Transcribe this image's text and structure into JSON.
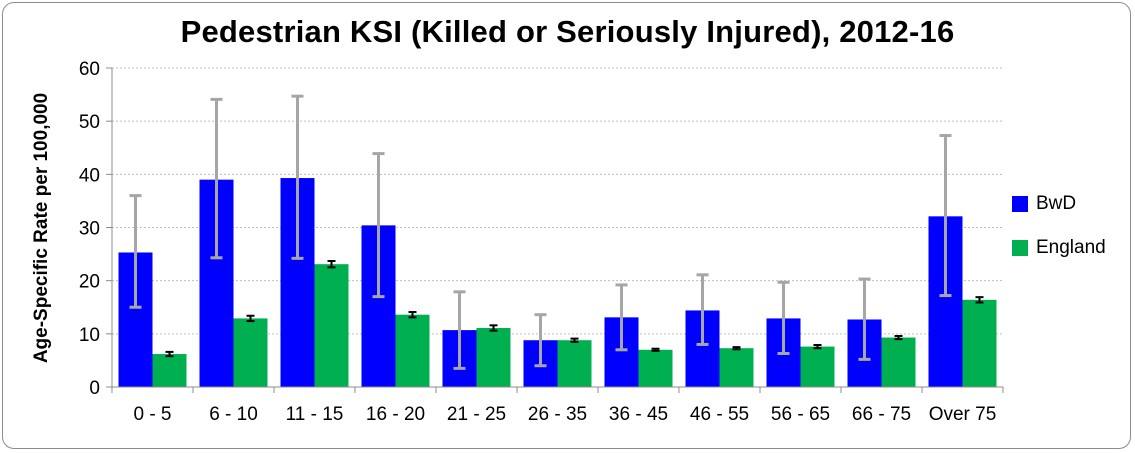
{
  "chart_data": {
    "type": "bar",
    "title": "Pedestrian KSI (Killed or Seriously Injured), 2012-16",
    "xlabel": "",
    "ylabel": "Age-Specific Rate per 100,000",
    "ylim": [
      0,
      60
    ],
    "yticks": [
      0,
      10,
      20,
      30,
      40,
      50,
      60
    ],
    "grid": true,
    "legend_position": "right",
    "categories": [
      "0 - 5",
      "6 - 10",
      "11 - 15",
      "16 - 20",
      "21 - 25",
      "26 - 35",
      "36 - 45",
      "46 - 55",
      "56 - 65",
      "66 - 75",
      "Over 75"
    ],
    "series": [
      {
        "name": "BwD",
        "color": "#0000ff",
        "values": [
          25.3,
          39.0,
          39.3,
          30.4,
          10.7,
          8.8,
          13.1,
          14.4,
          12.9,
          12.7,
          32.1
        ],
        "ci_low": [
          15.0,
          24.3,
          24.2,
          17.0,
          3.5,
          4.0,
          7.0,
          8.0,
          6.3,
          5.2,
          17.2
        ],
        "ci_high": [
          36.0,
          54.1,
          54.7,
          43.9,
          17.9,
          13.6,
          19.2,
          21.1,
          19.7,
          20.3,
          47.3
        ],
        "error_color": "#a6a6a6"
      },
      {
        "name": "England",
        "color": "#00b050",
        "values": [
          6.2,
          12.9,
          23.1,
          13.6,
          11.1,
          8.8,
          7.0,
          7.3,
          7.6,
          9.3,
          16.4
        ],
        "ci_low": [
          5.8,
          12.4,
          22.5,
          13.1,
          10.6,
          8.5,
          6.8,
          7.1,
          7.3,
          9.0,
          15.9
        ],
        "ci_high": [
          6.6,
          13.4,
          23.7,
          14.1,
          11.6,
          9.1,
          7.2,
          7.5,
          7.9,
          9.6,
          16.9
        ],
        "error_color": "#000000"
      }
    ]
  }
}
